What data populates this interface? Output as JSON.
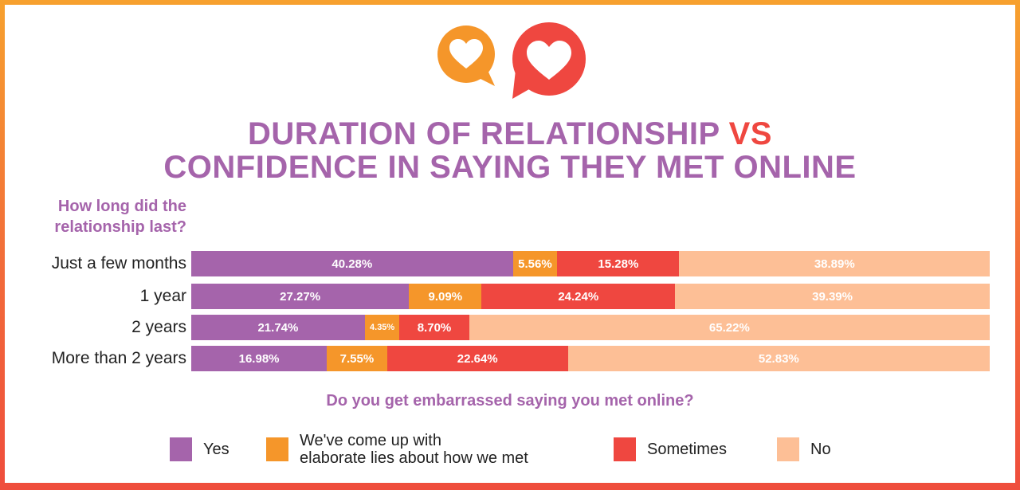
{
  "title": {
    "line1_main": "DURATION OF RELATIONSHIP",
    "line1_vs": "VS",
    "line2": "CONFIDENCE IN SAYING THEY MET ONLINE"
  },
  "y_axis_question": "How long did the relationship last?",
  "x_question": "Do you get embarrassed saying you met online?",
  "colors": {
    "yes": "#a564ab",
    "lies": "#f5962a",
    "sometimes": "#ef4740",
    "no": "#fdbf96"
  },
  "chart_data": {
    "type": "bar",
    "orientation": "horizontal",
    "stacked": true,
    "title": "DURATION OF RELATIONSHIP VS CONFIDENCE IN SAYING THEY MET ONLINE",
    "ylabel": "How long did the relationship last?",
    "xlabel": "Do you get embarrassed saying you met online?",
    "categories": [
      "Just a few months",
      "1 year",
      "2 years",
      "More than 2 years"
    ],
    "series": [
      {
        "name": "Yes",
        "values": [
          40.28,
          27.27,
          21.74,
          16.98
        ],
        "labels": [
          "40.28%",
          "27.27%",
          "21.74%",
          "16.98%"
        ]
      },
      {
        "name": "We've come up with elaborate lies about how we met",
        "values": [
          5.56,
          9.09,
          4.35,
          7.55
        ],
        "labels": [
          "5.56%",
          "9.09%",
          "4.35%",
          "7.55%"
        ]
      },
      {
        "name": "Sometimes",
        "values": [
          15.28,
          24.24,
          8.7,
          22.64
        ],
        "labels": [
          "15.28%",
          "24.24%",
          "8.70%",
          "22.64%"
        ]
      },
      {
        "name": "No",
        "values": [
          38.89,
          39.39,
          65.22,
          52.83
        ],
        "labels": [
          "38.89%",
          "39.39%",
          "65.22%",
          "52.83%"
        ]
      }
    ],
    "xlim": [
      0,
      100
    ],
    "legend_position": "bottom"
  },
  "legend": [
    {
      "key": "yes",
      "line1": "Yes",
      "line2": ""
    },
    {
      "key": "lies",
      "line1": "We've come up with",
      "line2": "elaborate lies about how we met"
    },
    {
      "key": "sometimes",
      "line1": "Sometimes",
      "line2": ""
    },
    {
      "key": "no",
      "line1": "No",
      "line2": ""
    }
  ]
}
